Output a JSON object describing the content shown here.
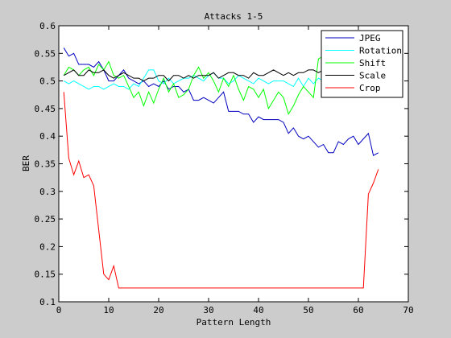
{
  "chart_data": {
    "type": "line",
    "title": "Attacks 1-5",
    "xlabel": "Pattern Length",
    "ylabel": "BER",
    "xlim": [
      0,
      70
    ],
    "ylim": [
      0.1,
      0.6
    ],
    "xticks": [
      0,
      10,
      20,
      30,
      40,
      50,
      60,
      70
    ],
    "yticks": [
      0.1,
      0.15,
      0.2,
      0.25,
      0.3,
      0.35,
      0.4,
      0.45,
      0.5,
      0.55,
      0.6
    ],
    "xtick_labels": [
      "0",
      "10",
      "20",
      "30",
      "40",
      "50",
      "60",
      "70"
    ],
    "ytick_labels": [
      "0.1",
      "0.15",
      "0.2",
      "0.25",
      "0.3",
      "0.35",
      "0.4",
      "0.45",
      "0.5",
      "0.55",
      "0.6"
    ],
    "grid": false,
    "legend_position": "top-right",
    "x": [
      1,
      2,
      3,
      4,
      5,
      6,
      7,
      8,
      9,
      10,
      11,
      12,
      13,
      14,
      15,
      16,
      17,
      18,
      19,
      20,
      21,
      22,
      23,
      24,
      25,
      26,
      27,
      28,
      29,
      30,
      31,
      32,
      33,
      34,
      35,
      36,
      37,
      38,
      39,
      40,
      41,
      42,
      43,
      44,
      45,
      46,
      47,
      48,
      49,
      50,
      51,
      52,
      53,
      54,
      55,
      56,
      57,
      58,
      59,
      60,
      61,
      62,
      63,
      64
    ],
    "series": [
      {
        "name": "JPEG",
        "color": "#0000bf",
        "values": [
          0.56,
          0.545,
          0.55,
          0.53,
          0.53,
          0.53,
          0.525,
          0.535,
          0.52,
          0.5,
          0.5,
          0.51,
          0.52,
          0.505,
          0.5,
          0.495,
          0.5,
          0.49,
          0.495,
          0.49,
          0.5,
          0.485,
          0.49,
          0.49,
          0.48,
          0.485,
          0.465,
          0.465,
          0.47,
          0.465,
          0.46,
          0.47,
          0.48,
          0.445,
          0.445,
          0.445,
          0.44,
          0.44,
          0.425,
          0.435,
          0.43,
          0.43,
          0.43,
          0.43,
          0.425,
          0.405,
          0.415,
          0.4,
          0.395,
          0.4,
          0.39,
          0.38,
          0.385,
          0.37,
          0.37,
          0.39,
          0.385,
          0.395,
          0.4,
          0.385,
          0.395,
          0.405,
          0.365,
          0.37
        ]
      },
      {
        "name": "Rotation",
        "color": "#00ffff",
        "values": [
          0.5,
          0.495,
          0.5,
          0.495,
          0.49,
          0.485,
          0.49,
          0.49,
          0.485,
          0.49,
          0.495,
          0.49,
          0.49,
          0.485,
          0.495,
          0.49,
          0.505,
          0.52,
          0.52,
          0.5,
          0.495,
          0.505,
          0.495,
          0.5,
          0.505,
          0.505,
          0.51,
          0.505,
          0.5,
          0.51,
          0.515,
          0.505,
          0.505,
          0.495,
          0.5,
          0.51,
          0.505,
          0.5,
          0.495,
          0.505,
          0.5,
          0.495,
          0.5,
          0.5,
          0.5,
          0.495,
          0.49,
          0.505,
          0.49,
          0.505,
          0.495,
          0.505,
          0.5,
          0.5,
          0.505,
          0.495,
          0.5,
          0.5,
          0.5,
          0.5,
          0.505,
          0.5,
          0.505,
          0.505
        ]
      },
      {
        "name": "Shift",
        "color": "#00ff00",
        "values": [
          0.51,
          0.525,
          0.52,
          0.51,
          0.52,
          0.525,
          0.51,
          0.53,
          0.52,
          0.535,
          0.51,
          0.505,
          0.51,
          0.49,
          0.47,
          0.48,
          0.455,
          0.48,
          0.46,
          0.485,
          0.505,
          0.48,
          0.495,
          0.47,
          0.475,
          0.485,
          0.51,
          0.525,
          0.505,
          0.515,
          0.5,
          0.48,
          0.505,
          0.49,
          0.51,
          0.485,
          0.465,
          0.49,
          0.485,
          0.47,
          0.485,
          0.45,
          0.465,
          0.48,
          0.47,
          0.44,
          0.455,
          0.475,
          0.49,
          0.48,
          0.47,
          0.54,
          0.545,
          0.54,
          0.53,
          0.525,
          0.53,
          0.515,
          0.52,
          0.51,
          0.525,
          0.52,
          0.53,
          0.51
        ]
      },
      {
        "name": "Scale",
        "color": "#000000",
        "values": [
          0.51,
          0.515,
          0.52,
          0.51,
          0.51,
          0.52,
          0.515,
          0.515,
          0.52,
          0.51,
          0.505,
          0.51,
          0.515,
          0.51,
          0.505,
          0.505,
          0.5,
          0.505,
          0.505,
          0.51,
          0.51,
          0.5,
          0.51,
          0.51,
          0.505,
          0.51,
          0.505,
          0.51,
          0.51,
          0.51,
          0.515,
          0.505,
          0.51,
          0.515,
          0.515,
          0.51,
          0.51,
          0.505,
          0.515,
          0.51,
          0.51,
          0.515,
          0.52,
          0.515,
          0.51,
          0.515,
          0.51,
          0.515,
          0.515,
          0.52,
          0.52,
          0.515,
          0.52,
          0.525,
          0.52,
          0.52,
          0.52,
          0.515,
          0.52,
          0.515,
          0.52,
          0.525,
          0.52,
          0.525
        ]
      },
      {
        "name": "Crop",
        "color": "#ff0000",
        "values": [
          0.48,
          0.36,
          0.33,
          0.355,
          0.325,
          0.33,
          0.31,
          0.23,
          0.15,
          0.14,
          0.165,
          0.125,
          0.125,
          0.125,
          0.125,
          0.125,
          0.125,
          0.125,
          0.125,
          0.125,
          0.125,
          0.125,
          0.125,
          0.125,
          0.125,
          0.125,
          0.125,
          0.125,
          0.125,
          0.125,
          0.125,
          0.125,
          0.125,
          0.125,
          0.125,
          0.125,
          0.125,
          0.125,
          0.125,
          0.125,
          0.125,
          0.125,
          0.125,
          0.125,
          0.125,
          0.125,
          0.125,
          0.125,
          0.125,
          0.125,
          0.125,
          0.125,
          0.125,
          0.125,
          0.125,
          0.125,
          0.125,
          0.125,
          0.125,
          0.125,
          0.125,
          0.295,
          0.315,
          0.34
        ]
      }
    ]
  }
}
